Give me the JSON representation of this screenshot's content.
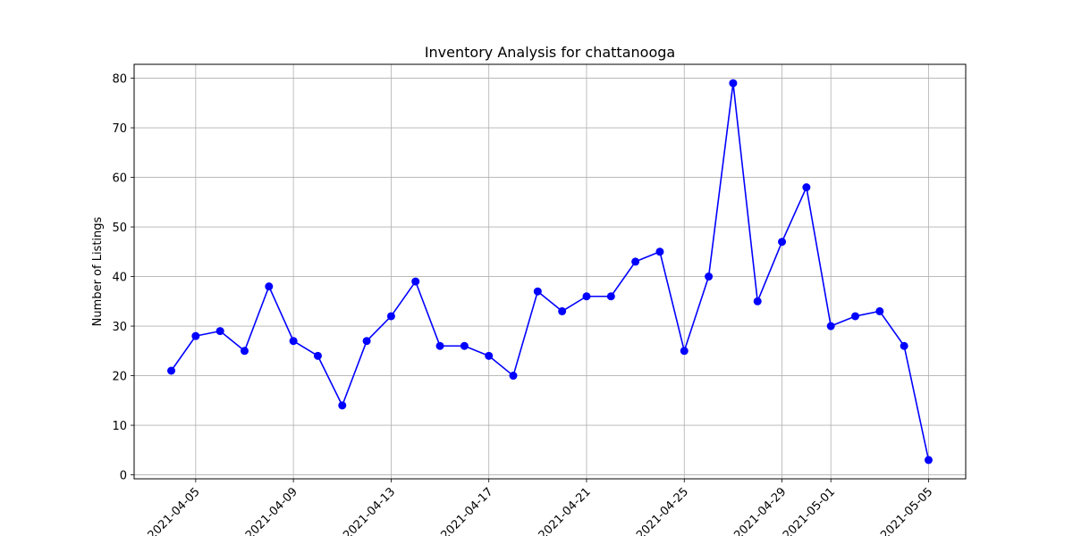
{
  "chart_data": {
    "type": "line",
    "title": "Inventory Analysis for chattanooga",
    "xlabel": "",
    "ylabel": "Number of Listings",
    "x": [
      "2021-04-04",
      "2021-04-05",
      "2021-04-06",
      "2021-04-07",
      "2021-04-08",
      "2021-04-09",
      "2021-04-10",
      "2021-04-11",
      "2021-04-12",
      "2021-04-13",
      "2021-04-14",
      "2021-04-15",
      "2021-04-16",
      "2021-04-17",
      "2021-04-18",
      "2021-04-19",
      "2021-04-20",
      "2021-04-21",
      "2021-04-22",
      "2021-04-23",
      "2021-04-24",
      "2021-04-25",
      "2021-04-26",
      "2021-04-27",
      "2021-04-28",
      "2021-04-29",
      "2021-04-30",
      "2021-05-01",
      "2021-05-02",
      "2021-05-03",
      "2021-05-04",
      "2021-05-05"
    ],
    "series": [
      {
        "values": [
          21,
          28,
          29,
          25,
          38,
          27,
          24,
          14,
          27,
          32,
          39,
          26,
          26,
          24,
          20,
          37,
          33,
          36,
          36,
          43,
          45,
          25,
          40,
          79,
          35,
          47,
          58,
          30,
          32,
          33,
          26,
          3
        ]
      }
    ],
    "xticks": [
      "2021-04-05",
      "2021-04-09",
      "2021-04-13",
      "2021-04-17",
      "2021-04-21",
      "2021-04-25",
      "2021-04-29",
      "2021-05-01",
      "2021-05-05"
    ],
    "yticks": [
      0,
      10,
      20,
      30,
      40,
      50,
      60,
      70,
      80
    ],
    "xlim": [
      "2021-04-02T11:31",
      "2021-05-06T12:29"
    ],
    "ylim": [
      -0.8,
      82.8
    ],
    "grid": true,
    "colors": {
      "line": "#0000ff",
      "marker": "#0000ff",
      "grid": "#b0b0b0",
      "axis": "#000000"
    }
  }
}
